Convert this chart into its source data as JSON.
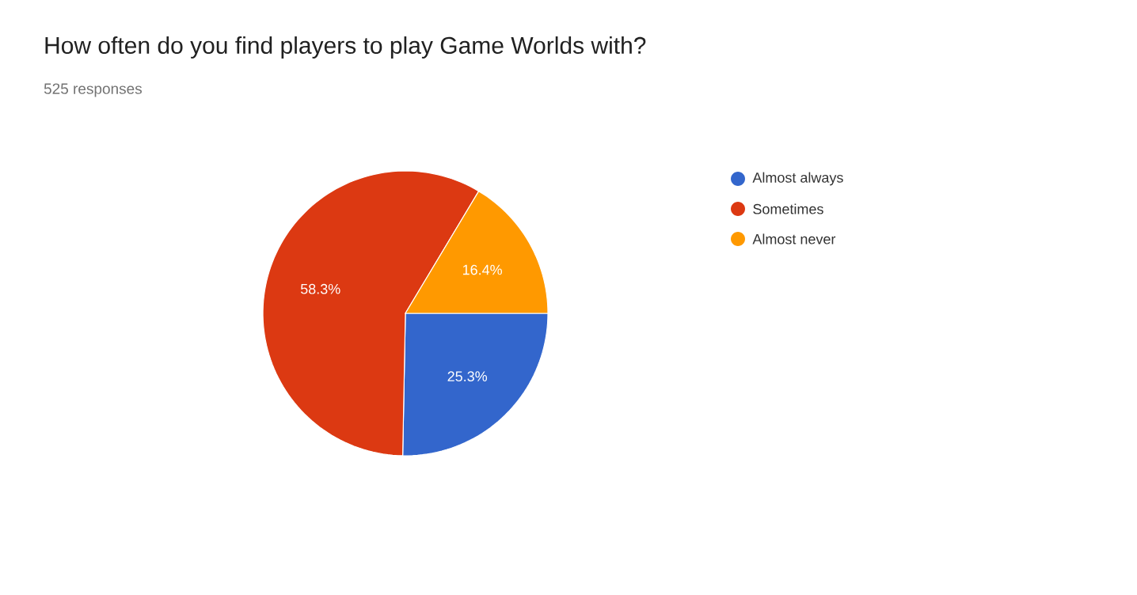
{
  "chart_data": {
    "type": "pie",
    "title": "How often do you find players to play Game Worlds with?",
    "subtitle": "525 responses",
    "categories": [
      "Almost always",
      "Sometimes",
      "Almost never"
    ],
    "values": [
      25.3,
      58.3,
      16.4
    ],
    "value_labels": [
      "25.3%",
      "58.3%",
      "16.4%"
    ],
    "colors": [
      "#3366cc",
      "#dc3912",
      "#ff9900"
    ],
    "legend": "right"
  }
}
